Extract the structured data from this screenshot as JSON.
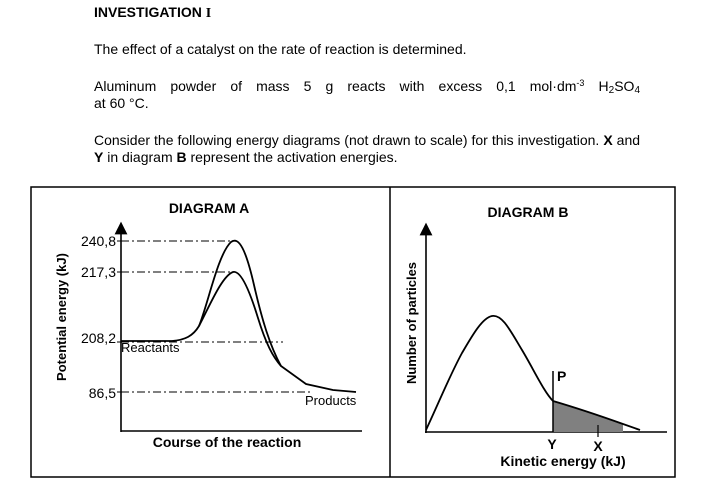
{
  "heading": {
    "label": "INVESTIGATION",
    "numeral": "I"
  },
  "paragraph1": "The effect of a catalyst on the rate of reaction is determined.",
  "paragraph2": {
    "line1": "Aluminum powder of mass 5 g reacts with excess 0,1 mol·dm",
    "exp": "-3",
    "formula_h": "H",
    "sub1": "2",
    "formula_so": "SO",
    "sub2": "4",
    "line2": "at 60 °C."
  },
  "paragraph3": {
    "part1": "Consider the following energy diagrams (not drawn to scale) for this investigation.",
    "x": "X",
    "and": "and",
    "y": "Y",
    "part2": "in diagram",
    "b": "B",
    "part3": "represent the activation energies."
  },
  "diagram_a": {
    "title": "DIAGRAM A",
    "ylabel": "Potential energy (kJ)",
    "xlabel": "Course of the reaction",
    "ticks": [
      "240,8",
      "217,3",
      "208,2",
      "86,5"
    ],
    "reactants_label": "Reactants",
    "products_label": "Products"
  },
  "diagram_b": {
    "title": "DIAGRAM B",
    "ylabel": "Number of particles",
    "xlabel": "Kinetic energy (kJ)",
    "p_label": "P",
    "y_label": "Y",
    "x_label": "X",
    "shade_color": "#808080"
  }
}
